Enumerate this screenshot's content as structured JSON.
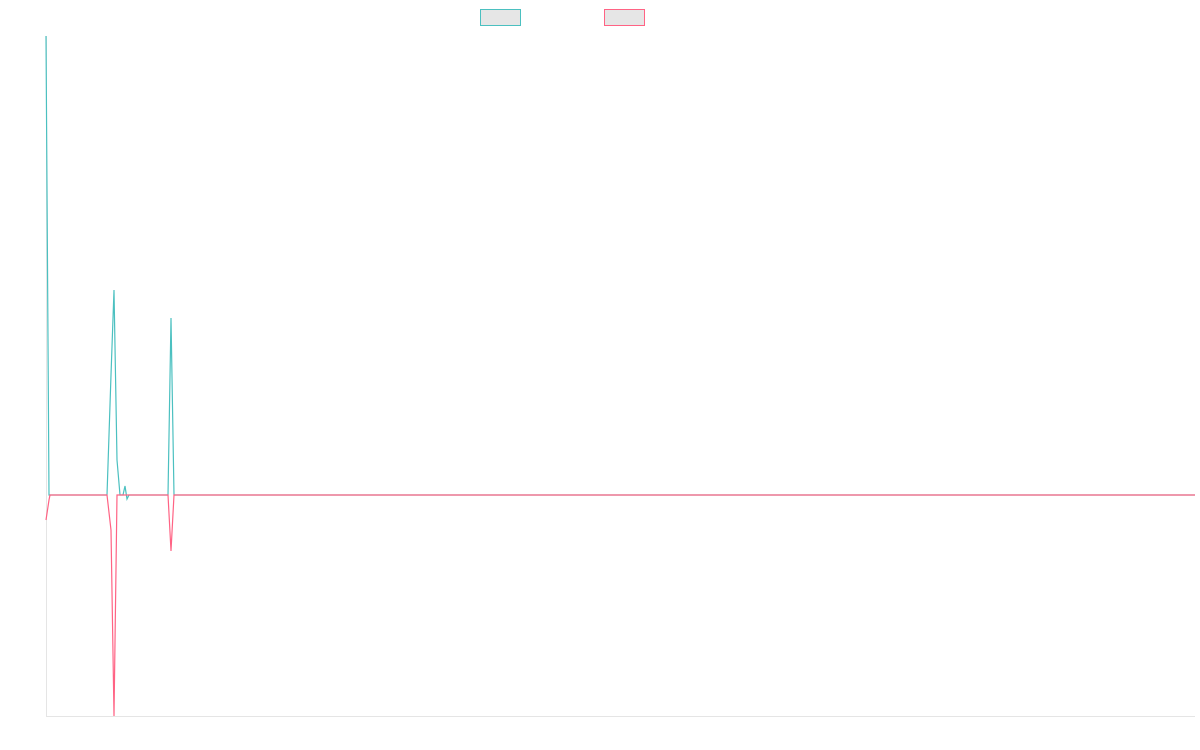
{
  "chart_data": {
    "type": "line",
    "x": [
      0,
      3,
      4,
      61,
      65,
      68,
      71,
      74,
      77,
      79,
      81,
      83,
      86,
      122,
      125,
      128,
      1149
    ],
    "series": [
      {
        "color": "#4bc0c0",
        "values": [
          459,
          0,
          0,
          0,
          120,
          205,
          35,
          0,
          0,
          9,
          -4,
          0,
          0,
          0,
          177,
          0,
          0
        ]
      },
      {
        "color": "#ff6384",
        "values": [
          -25,
          -5,
          0,
          0,
          -35,
          -221,
          0,
          0,
          0,
          0,
          0,
          0,
          0,
          0,
          -56,
          0,
          0
        ]
      }
    ],
    "xlim": [
      0,
      1149
    ],
    "ylim": [
      -221,
      459
    ]
  }
}
